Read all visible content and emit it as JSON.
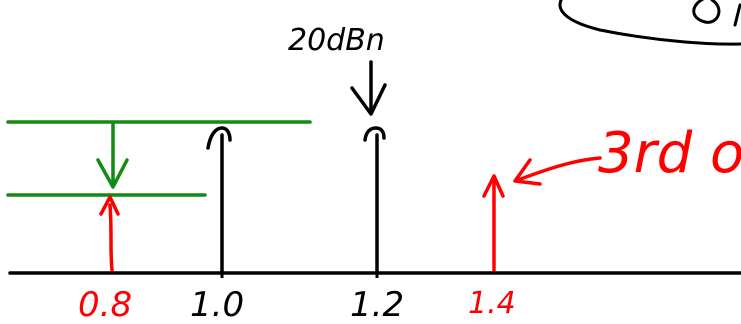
{
  "axis": {
    "tick_labels": [
      "0.8",
      "1.0",
      "1.2",
      "1.4"
    ]
  },
  "annotations": {
    "level_label": "20dBn",
    "order_note": "3rd o"
  },
  "colors": {
    "ink": "#000000",
    "red": "#ff0000",
    "green": "#138a13"
  }
}
